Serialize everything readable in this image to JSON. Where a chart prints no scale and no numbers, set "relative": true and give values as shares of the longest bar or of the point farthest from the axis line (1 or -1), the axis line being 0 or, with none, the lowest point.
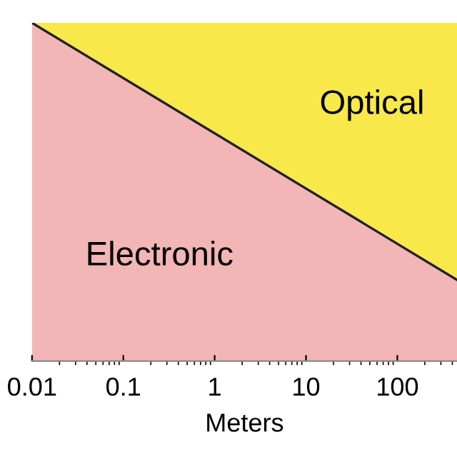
{
  "chart_data": {
    "type": "area",
    "relative": true,
    "stacked": true,
    "log": "x",
    "xlabel": "Meters",
    "xlim": [
      0.01,
      450
    ],
    "x": [
      0.01,
      450
    ],
    "xticks": [
      {
        "value": 0.01,
        "label": "0.01"
      },
      0.1,
      1,
      10,
      100
    ],
    "series": [
      {
        "name": "Electronic",
        "color": "#f2b6b6",
        "values": [
          1,
          0.24
        ]
      },
      {
        "name": "Optical",
        "color": "#f8e84a",
        "values": [
          0,
          0.76
        ]
      }
    ]
  }
}
